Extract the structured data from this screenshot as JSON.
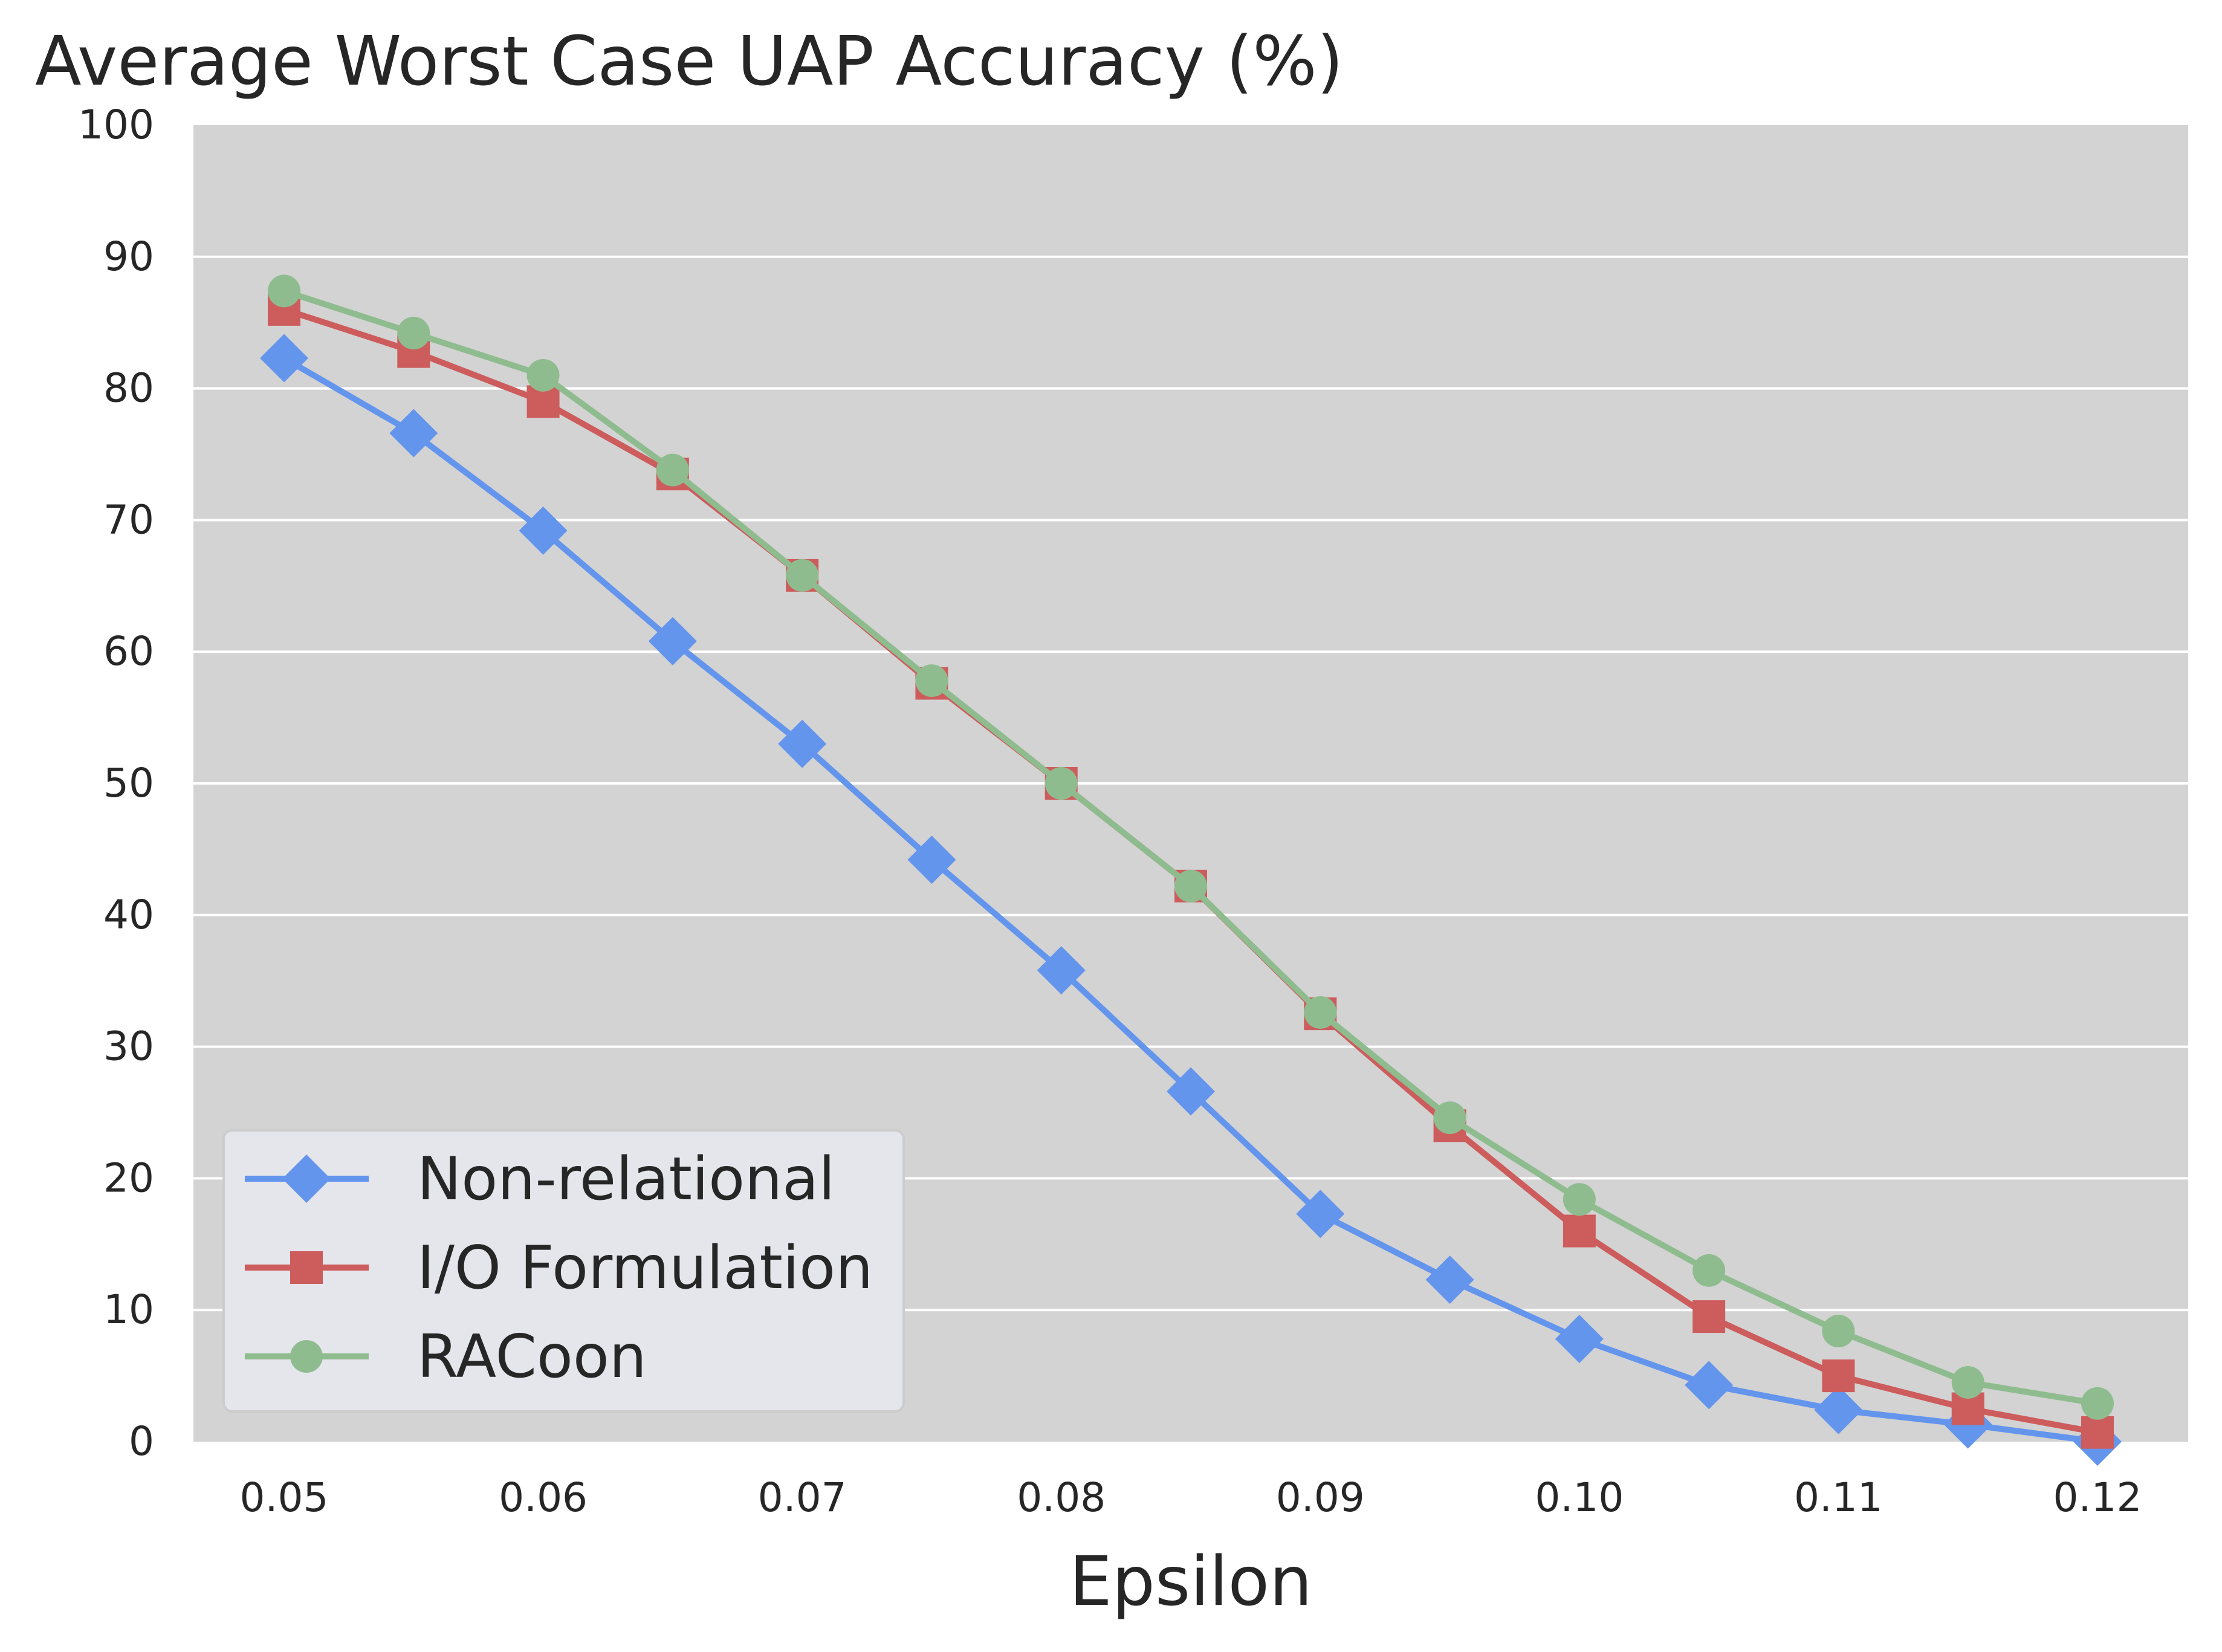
{
  "chart_data": {
    "type": "line",
    "title": "Average Worst Case UAP Accuracy (%)",
    "xlabel": "Epsilon",
    "ylabel": "",
    "xlim": [
      0.0465,
      0.1235
    ],
    "ylim": [
      0,
      100
    ],
    "xticks": [
      0.05,
      0.06,
      0.07,
      0.08,
      0.09,
      0.1,
      0.11,
      0.12
    ],
    "xtick_labels": [
      "0.05",
      "0.06",
      "0.07",
      "0.08",
      "0.09",
      "0.10",
      "0.11",
      "0.12"
    ],
    "yticks": [
      0,
      10,
      20,
      30,
      40,
      50,
      60,
      70,
      80,
      90,
      100
    ],
    "ytick_labels": [
      "0",
      "10",
      "20",
      "30",
      "40",
      "50",
      "60",
      "70",
      "80",
      "90",
      "100"
    ],
    "grid": true,
    "legend_position": "lower-left",
    "x": [
      0.05,
      0.055,
      0.06,
      0.065,
      0.07,
      0.075,
      0.08,
      0.085,
      0.09,
      0.095,
      0.1,
      0.105,
      0.11,
      0.115,
      0.12
    ],
    "series": [
      {
        "name": "Non-relational",
        "color": "#6495ed",
        "marker": "diamond",
        "values": [
          82.3,
          76.6,
          69.2,
          60.8,
          53.0,
          44.2,
          35.8,
          26.6,
          17.3,
          12.3,
          7.8,
          4.3,
          2.4,
          1.3,
          0.0
        ]
      },
      {
        "name": "I/O Formulation",
        "color": "#cd5c5c",
        "marker": "square",
        "values": [
          86.0,
          82.8,
          79.0,
          73.5,
          65.8,
          57.6,
          50.0,
          42.2,
          32.5,
          24.0,
          16.0,
          9.5,
          5.0,
          2.5,
          0.7
        ]
      },
      {
        "name": "RACoon",
        "color": "#8fbc8f",
        "marker": "circle",
        "values": [
          87.4,
          84.2,
          81.0,
          73.8,
          65.8,
          57.8,
          50.0,
          42.2,
          32.6,
          24.6,
          18.4,
          13.0,
          8.4,
          4.5,
          2.9
        ]
      }
    ]
  }
}
